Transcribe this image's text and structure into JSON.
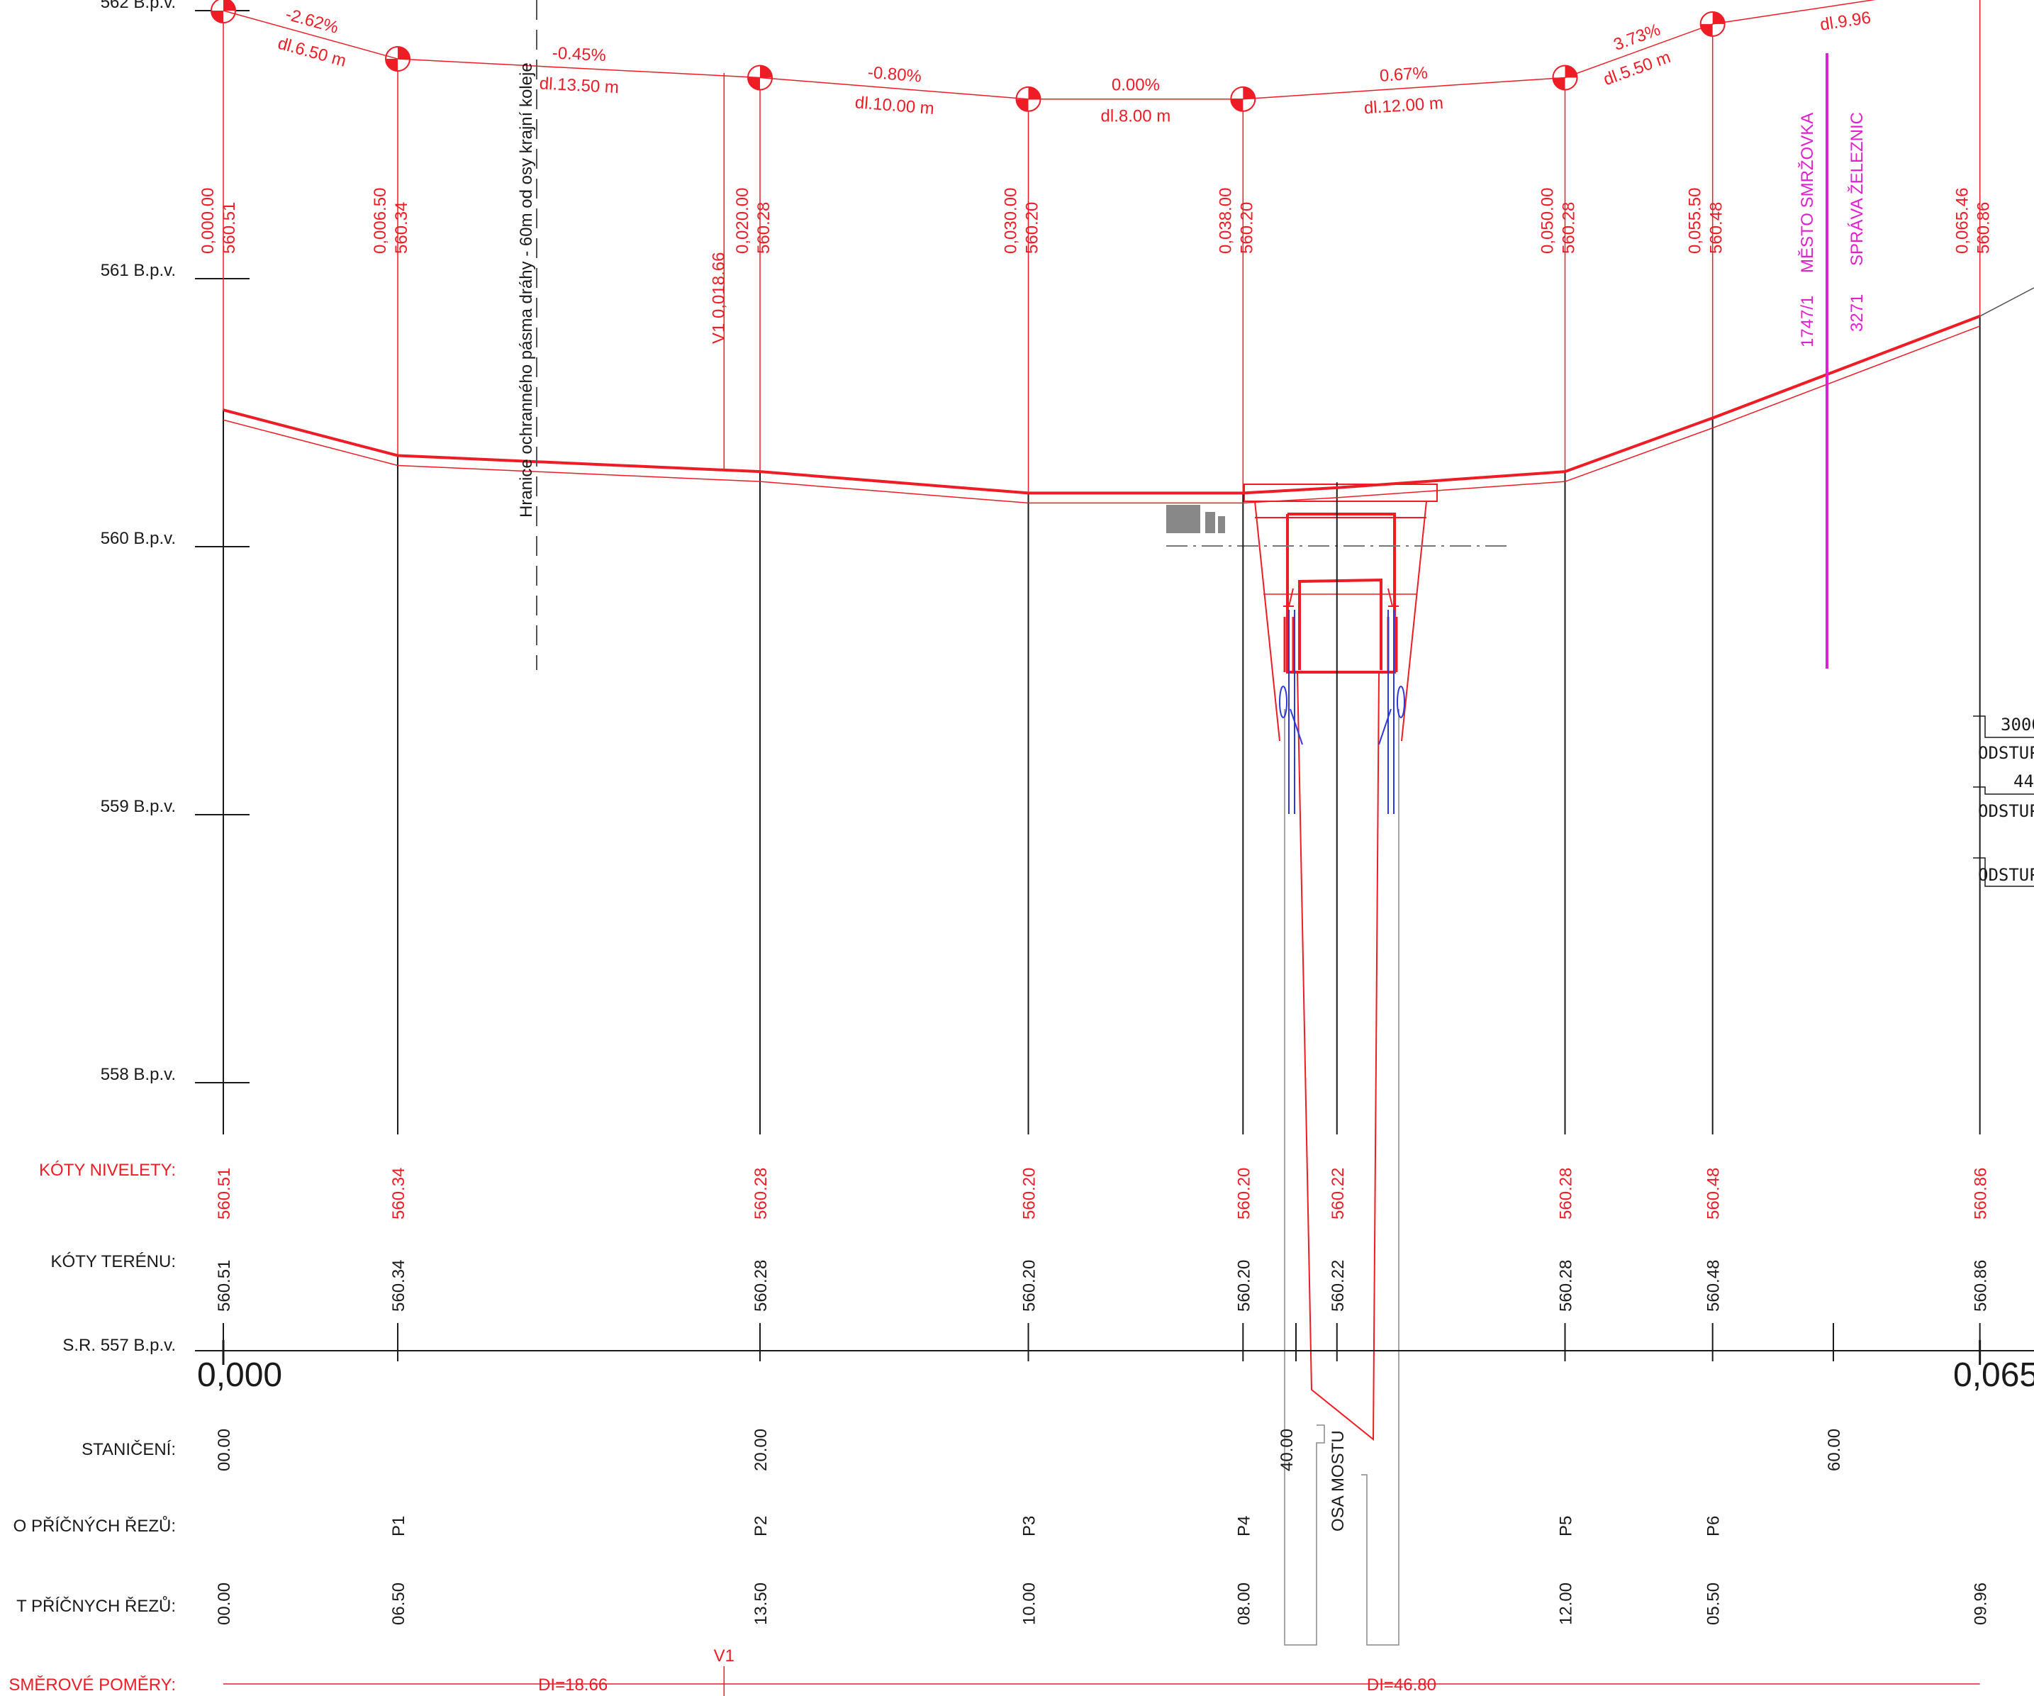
{
  "elevation_axis": [
    {
      "label": "562 B.p.v.",
      "elev": 562
    },
    {
      "label": "561 B.p.v.",
      "elev": 561
    },
    {
      "label": "560 B.p.v.",
      "elev": 560
    },
    {
      "label": "559 B.p.v.",
      "elev": 559
    },
    {
      "label": "558 B.p.v.",
      "elev": 558
    }
  ],
  "reference_level": {
    "label": "S.R.  557 B.p.v.",
    "elev": 557
  },
  "chainage_start_label": "0,000",
  "chainage_end_label": "0,065",
  "stations": [
    {
      "x": 0.0,
      "label": "0,000.00",
      "elev_label": "560.51",
      "niveleta": "560.51",
      "teren": "560.51",
      "stanicni": "00.00",
      "rez": "",
      "vzdalenost": "00.00"
    },
    {
      "x": 6.5,
      "label": "0,006.50",
      "elev_label": "560.34",
      "niveleta": "560.34",
      "teren": "560.34",
      "stanicni": "",
      "rez": "P1",
      "vzdalenost": "06.50"
    },
    {
      "x": 20.0,
      "label": "0,020.00",
      "elev_label": "560.28",
      "niveleta": "560.28",
      "teren": "560.28",
      "stanicni": "20.00",
      "rez": "P2",
      "vzdalenost": "13.50"
    },
    {
      "x": 30.0,
      "label": "0,030.00",
      "elev_label": "560.20",
      "niveleta": "560.20",
      "teren": "560.20",
      "stanicni": "",
      "rez": "P3",
      "vzdalenost": "10.00"
    },
    {
      "x": 38.0,
      "label": "0,038.00",
      "elev_label": "560.20",
      "niveleta": "560.20",
      "teren": "560.20",
      "stanicni": "",
      "rez": "P4",
      "vzdalenost": "08.00"
    },
    {
      "x": 50.0,
      "label": "0,050.00",
      "elev_label": "560.28",
      "niveleta": "560.28",
      "teren": "560.28",
      "stanicni": "",
      "rez": "P5",
      "vzdalenost": "12.00"
    },
    {
      "x": 55.5,
      "label": "0,055.50",
      "elev_label": "560.48",
      "niveleta": "560.48",
      "teren": "560.48",
      "stanicni": "",
      "rez": "P6",
      "vzdalenost": "05.50"
    },
    {
      "x": 65.46,
      "label": "0,065.46",
      "elev_label": "560.86",
      "niveleta": "560.86",
      "teren": "560.86",
      "stanicni": "",
      "rez": "",
      "vzdalenost": "09.96"
    }
  ],
  "bridge_axis": {
    "x": 41.5,
    "niveleta": "560.22",
    "teren": "560.22",
    "label": "OSA MOSTU"
  },
  "station_40": {
    "x": 40.0,
    "label": "40.00"
  },
  "station_60": {
    "x": 60.0,
    "label": "60.00"
  },
  "vertical_curve": {
    "x": 18.66,
    "label": "V1 0,018.66",
    "band_label": "V1"
  },
  "gradients": [
    {
      "pct": "-2.62%",
      "len": "dl.6.50 m"
    },
    {
      "pct": "-0.45%",
      "len": "dl.13.50 m"
    },
    {
      "pct": "-0.80%",
      "len": "dl.10.00 m"
    },
    {
      "pct": "0.00%",
      "len": "dl.8.00 m"
    },
    {
      "pct": "0.67%",
      "len": "dl.12.00 m"
    },
    {
      "pct": "3.73%",
      "len": "dl.5.50 m"
    },
    {
      "pct": "",
      "len": "dl.9.96"
    }
  ],
  "protection_zone_label": "Hranice ochranného pásma dráhy - 60m od osy krajní koleje",
  "ownership": {
    "left_code": "1747/1",
    "left_owner": "MĚSTO SMRŽOVKA",
    "right_code": "3271",
    "right_owner": "SPRÁVA ŽELEZNIC"
  },
  "band_labels": {
    "niveleta": "KÓTY NIVELETY:",
    "teren": "KÓTY TERÉNU:",
    "staniceni": "STANIČENÍ:",
    "rezy": "O PŘÍČNÝCH ŘEZŮ:",
    "vzdalenosti": "T PŘÍČNYCH ŘEZŮ:",
    "smerove": "SMĚROVÉ POMĚRY:"
  },
  "direction_segments": [
    {
      "label": "DI=18.66"
    },
    {
      "label": "DI=46.80"
    }
  ],
  "side_notes": [
    {
      "value": "3000",
      "label": "ODSTUP"
    },
    {
      "value": "44",
      "label": "ODSTUP"
    },
    {
      "value": "",
      "label": "ODSTUP"
    }
  ],
  "colors": {
    "red": "#ee1c25",
    "black": "#1a1a1a",
    "blue": "#2b3bd9",
    "magenta": "#e11fd0",
    "grey": "#777777"
  }
}
